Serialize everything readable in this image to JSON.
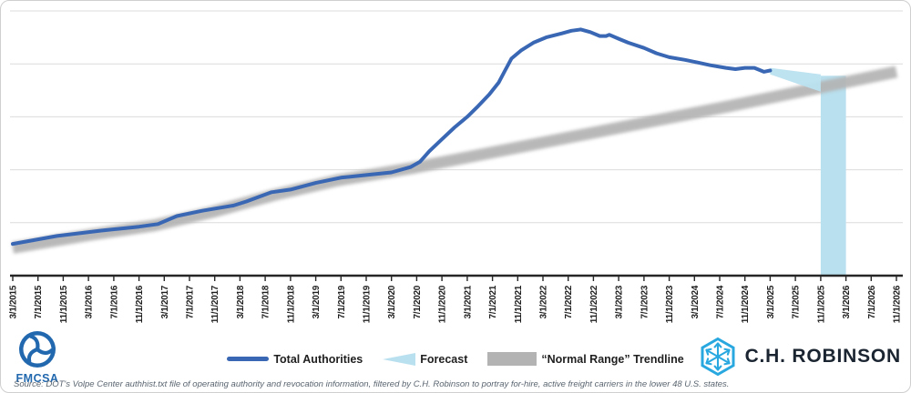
{
  "chart_data": {
    "type": "line",
    "title": "",
    "x_unit": "months since 3/1/2015",
    "y_unit": "relative level (y-axis has no visible labels); 0 = x-axis, 100 = top gridline",
    "x_ticks": [
      "3/1/2015",
      "7/1/2015",
      "11/1/2015",
      "3/1/2016",
      "7/1/2016",
      "11/1/2016",
      "3/1/2017",
      "7/1/2017",
      "11/1/2017",
      "3/1/2018",
      "7/1/2018",
      "11/1/2018",
      "3/1/2019",
      "7/1/2019",
      "11/1/2019",
      "3/1/2020",
      "7/1/2020",
      "11/1/2020",
      "3/1/2021",
      "7/1/2021",
      "11/1/2021",
      "3/1/2022",
      "7/1/2022",
      "11/1/2022",
      "3/1/2023",
      "7/1/2023",
      "11/1/2023",
      "3/1/2024",
      "7/1/2024",
      "11/1/2024",
      "3/1/2025",
      "7/1/2025",
      "11/1/2025",
      "3/1/2026",
      "7/1/2026",
      "11/1/2026"
    ],
    "y_axis": {
      "labels_visible": false,
      "range": [
        0,
        100
      ],
      "gridlines": [
        20,
        40,
        60,
        80,
        100
      ]
    },
    "series": [
      {
        "name": "Total Authorities",
        "points": [
          [
            0,
            12
          ],
          [
            7,
            15
          ],
          [
            14,
            17
          ],
          [
            20,
            18.5
          ],
          [
            23,
            19.5
          ],
          [
            26,
            22.5
          ],
          [
            30,
            24.5
          ],
          [
            35,
            26.5
          ],
          [
            37,
            28
          ],
          [
            41,
            31.5
          ],
          [
            44,
            32.5
          ],
          [
            48,
            35
          ],
          [
            52,
            37
          ],
          [
            56,
            38
          ],
          [
            60,
            39
          ],
          [
            63,
            41
          ],
          [
            64.5,
            43
          ],
          [
            66,
            47
          ],
          [
            68,
            51.5
          ],
          [
            70,
            56
          ],
          [
            72,
            60
          ],
          [
            73.5,
            63.5
          ],
          [
            75.5,
            68.5
          ],
          [
            77,
            73
          ],
          [
            78,
            77.5
          ],
          [
            79,
            82
          ],
          [
            80.5,
            85
          ],
          [
            82.5,
            88
          ],
          [
            84.5,
            90
          ],
          [
            87,
            91.5
          ],
          [
            88.5,
            92.5
          ],
          [
            90,
            93
          ],
          [
            91.5,
            92
          ],
          [
            93,
            90.5
          ],
          [
            94,
            90.5
          ],
          [
            94.5,
            91
          ],
          [
            96,
            89.5
          ],
          [
            97.5,
            88
          ],
          [
            100,
            86
          ],
          [
            102,
            84
          ],
          [
            104,
            82.5
          ],
          [
            106.5,
            81.5
          ],
          [
            108.5,
            80.5
          ],
          [
            110.5,
            79.5
          ],
          [
            113,
            78.5
          ],
          [
            114.5,
            78
          ],
          [
            116,
            78.5
          ],
          [
            117.5,
            78.5
          ],
          [
            119,
            77
          ],
          [
            120,
            77.5
          ]
        ]
      }
    ],
    "trendline": {
      "name": "“Normal Range” Trendline",
      "points": [
        [
          0,
          10.5
        ],
        [
          12.5,
          15.5
        ],
        [
          22.5,
          19
        ],
        [
          31.5,
          24
        ],
        [
          41.5,
          30.5
        ],
        [
          51.5,
          36
        ],
        [
          63,
          40.5
        ],
        [
          84.5,
          50.5
        ],
        [
          113.5,
          64
        ],
        [
          140,
          77
        ]
      ]
    },
    "forecast": {
      "name": "Forecast",
      "wedge": {
        "start_m": 120,
        "end_m": 128,
        "start_v": [
          78.5,
          76
        ],
        "end_v": [
          76,
          69.5
        ]
      },
      "highlight_band": {
        "from": "11/1/2025",
        "to": "3/1/2026",
        "top_v": 75.5
      }
    }
  },
  "legend": {
    "items": [
      {
        "label": "Total Authorities",
        "swatch": "line"
      },
      {
        "label": "Forecast",
        "swatch": "wedge"
      },
      {
        "label": "“Normal Range” Trendline",
        "swatch": "band"
      }
    ]
  },
  "footer": {
    "fmcsa_label": "FMCSA",
    "source_text": "Source: DOT's Volpe Center authhist.txt file of operating authority and revocation information, filtered by C.H. Robinson to portray for-hire, active freight carriers in the lower 48 U.S. states.",
    "brand": "C.H. ROBINSON"
  },
  "colors": {
    "accent_blue": "#3a67b4",
    "forecast_blue": "#b9e0ef",
    "trend_gray": "#b3b3b3",
    "gridline": "#dcdcdc",
    "axis": "#262626",
    "fmcsa_blue": "#2268ae",
    "brand_navy": "#1b2531",
    "brand_cyan": "#29a8e0"
  }
}
